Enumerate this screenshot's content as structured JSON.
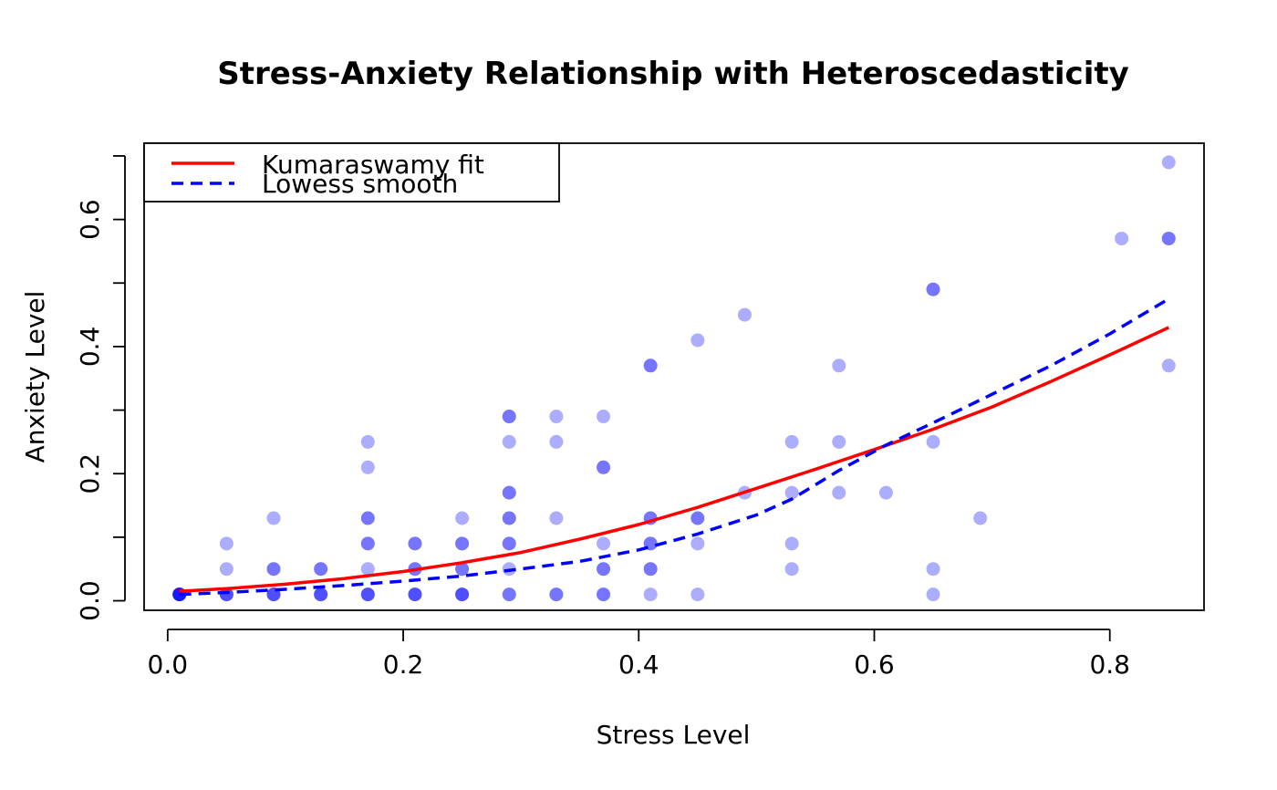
{
  "chart_data": {
    "type": "scatter",
    "title": "Stress-Anxiety Relationship with Heteroscedasticity",
    "xlabel": "Stress Level",
    "ylabel": "Anxiety Level",
    "xlim": [
      -0.02,
      0.88
    ],
    "ylim": [
      -0.015,
      0.72
    ],
    "x_ticks": [
      0.0,
      0.2,
      0.4,
      0.6,
      0.8
    ],
    "x_tick_labels": [
      "0.0",
      "0.2",
      "0.4",
      "0.6",
      "0.8"
    ],
    "y_ticks": [
      0.0,
      0.1,
      0.2,
      0.3,
      0.4,
      0.5,
      0.6,
      0.7
    ],
    "y_tick_labels": [
      "0.0",
      "",
      "0.2",
      "",
      "0.4",
      "",
      "0.6",
      ""
    ],
    "point_color": "#0000FF",
    "point_alpha": 0.32,
    "points": [
      [
        0.01,
        0.01
      ],
      [
        0.01,
        0.01
      ],
      [
        0.01,
        0.01
      ],
      [
        0.01,
        0.01
      ],
      [
        0.01,
        0.01
      ],
      [
        0.01,
        0.01
      ],
      [
        0.05,
        0.01
      ],
      [
        0.05,
        0.01
      ],
      [
        0.05,
        0.01
      ],
      [
        0.05,
        0.05
      ],
      [
        0.05,
        0.09
      ],
      [
        0.09,
        0.01
      ],
      [
        0.09,
        0.01
      ],
      [
        0.09,
        0.01
      ],
      [
        0.09,
        0.05
      ],
      [
        0.09,
        0.05
      ],
      [
        0.09,
        0.13
      ],
      [
        0.13,
        0.01
      ],
      [
        0.13,
        0.01
      ],
      [
        0.13,
        0.01
      ],
      [
        0.13,
        0.05
      ],
      [
        0.13,
        0.05
      ],
      [
        0.17,
        0.01
      ],
      [
        0.17,
        0.01
      ],
      [
        0.17,
        0.01
      ],
      [
        0.17,
        0.05
      ],
      [
        0.17,
        0.09
      ],
      [
        0.17,
        0.09
      ],
      [
        0.17,
        0.13
      ],
      [
        0.17,
        0.13
      ],
      [
        0.17,
        0.21
      ],
      [
        0.17,
        0.25
      ],
      [
        0.21,
        0.01
      ],
      [
        0.21,
        0.01
      ],
      [
        0.21,
        0.01
      ],
      [
        0.21,
        0.05
      ],
      [
        0.21,
        0.05
      ],
      [
        0.21,
        0.09
      ],
      [
        0.21,
        0.09
      ],
      [
        0.25,
        0.01
      ],
      [
        0.25,
        0.01
      ],
      [
        0.25,
        0.01
      ],
      [
        0.25,
        0.05
      ],
      [
        0.25,
        0.05
      ],
      [
        0.25,
        0.09
      ],
      [
        0.25,
        0.09
      ],
      [
        0.25,
        0.13
      ],
      [
        0.29,
        0.01
      ],
      [
        0.29,
        0.01
      ],
      [
        0.29,
        0.05
      ],
      [
        0.29,
        0.09
      ],
      [
        0.29,
        0.09
      ],
      [
        0.29,
        0.13
      ],
      [
        0.29,
        0.13
      ],
      [
        0.29,
        0.17
      ],
      [
        0.29,
        0.17
      ],
      [
        0.29,
        0.25
      ],
      [
        0.29,
        0.29
      ],
      [
        0.29,
        0.29
      ],
      [
        0.33,
        0.01
      ],
      [
        0.33,
        0.01
      ],
      [
        0.33,
        0.13
      ],
      [
        0.33,
        0.25
      ],
      [
        0.33,
        0.29
      ],
      [
        0.37,
        0.01
      ],
      [
        0.37,
        0.01
      ],
      [
        0.37,
        0.05
      ],
      [
        0.37,
        0.05
      ],
      [
        0.37,
        0.09
      ],
      [
        0.37,
        0.21
      ],
      [
        0.37,
        0.21
      ],
      [
        0.37,
        0.29
      ],
      [
        0.41,
        0.01
      ],
      [
        0.41,
        0.05
      ],
      [
        0.41,
        0.05
      ],
      [
        0.41,
        0.09
      ],
      [
        0.41,
        0.09
      ],
      [
        0.41,
        0.13
      ],
      [
        0.41,
        0.13
      ],
      [
        0.41,
        0.37
      ],
      [
        0.41,
        0.37
      ],
      [
        0.45,
        0.01
      ],
      [
        0.45,
        0.09
      ],
      [
        0.45,
        0.13
      ],
      [
        0.45,
        0.13
      ],
      [
        0.45,
        0.41
      ],
      [
        0.49,
        0.17
      ],
      [
        0.49,
        0.45
      ],
      [
        0.53,
        0.05
      ],
      [
        0.53,
        0.09
      ],
      [
        0.53,
        0.17
      ],
      [
        0.53,
        0.25
      ],
      [
        0.57,
        0.17
      ],
      [
        0.57,
        0.25
      ],
      [
        0.57,
        0.37
      ],
      [
        0.61,
        0.17
      ],
      [
        0.65,
        0.01
      ],
      [
        0.65,
        0.05
      ],
      [
        0.65,
        0.25
      ],
      [
        0.65,
        0.49
      ],
      [
        0.65,
        0.49
      ],
      [
        0.69,
        0.13
      ],
      [
        0.81,
        0.57
      ],
      [
        0.85,
        0.37
      ],
      [
        0.85,
        0.57
      ],
      [
        0.85,
        0.57
      ],
      [
        0.85,
        0.69
      ]
    ],
    "series": [
      {
        "name": "Kumaraswamy fit",
        "color": "#FF0000",
        "style": "solid",
        "x": [
          0.01,
          0.05,
          0.1,
          0.15,
          0.2,
          0.25,
          0.3,
          0.35,
          0.4,
          0.45,
          0.5,
          0.55,
          0.6,
          0.65,
          0.7,
          0.75,
          0.8,
          0.85
        ],
        "y": [
          0.015,
          0.019,
          0.026,
          0.035,
          0.046,
          0.06,
          0.076,
          0.097,
          0.12,
          0.147,
          0.177,
          0.207,
          0.238,
          0.27,
          0.305,
          0.345,
          0.387,
          0.43
        ]
      },
      {
        "name": "Lowess smooth",
        "color": "#0000FF",
        "style": "dashed",
        "x": [
          0.01,
          0.05,
          0.1,
          0.15,
          0.2,
          0.25,
          0.3,
          0.35,
          0.4,
          0.45,
          0.5,
          0.53,
          0.57,
          0.61,
          0.65,
          0.7,
          0.75,
          0.8,
          0.85
        ],
        "y": [
          0.01,
          0.013,
          0.018,
          0.024,
          0.031,
          0.039,
          0.05,
          0.062,
          0.08,
          0.105,
          0.135,
          0.16,
          0.205,
          0.245,
          0.28,
          0.325,
          0.37,
          0.42,
          0.475
        ]
      }
    ],
    "legend": {
      "position": "top-left",
      "entries": [
        {
          "label": "Kumaraswamy fit",
          "color": "#FF0000",
          "style": "solid"
        },
        {
          "label": "Lowess smooth",
          "color": "#0000FF",
          "style": "dashed"
        }
      ]
    }
  }
}
